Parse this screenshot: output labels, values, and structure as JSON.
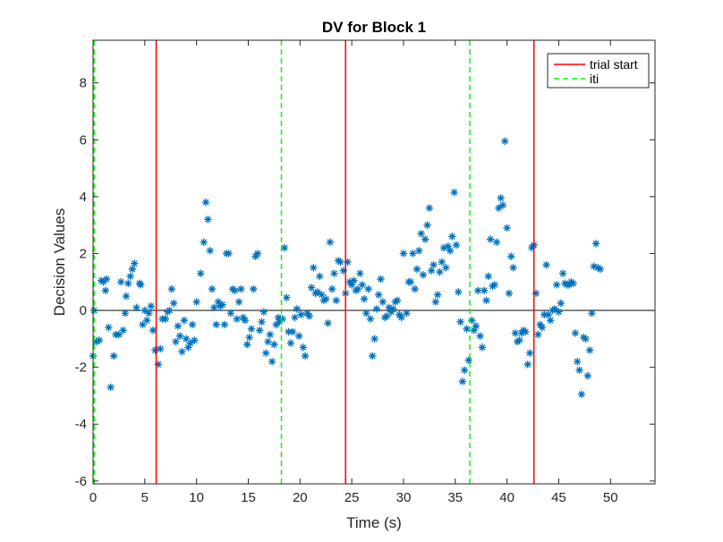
{
  "chart_data": {
    "type": "scatter",
    "title": "DV for Block 1",
    "xlabel": "Time (s)",
    "ylabel": "Decision Values",
    "xlim": [
      0,
      54.3
    ],
    "ylim": [
      -6.1,
      9.5
    ],
    "xticks": [
      0,
      5,
      10,
      15,
      20,
      25,
      30,
      35,
      40,
      45,
      50
    ],
    "yticks": [
      -6,
      -4,
      -2,
      0,
      2,
      4,
      6,
      8
    ],
    "grid": false,
    "legend_position": "top-right",
    "zero_line": 0,
    "colors": {
      "points": "#0072BD",
      "trial_start": "#FF0000",
      "iti": "#00FF00",
      "zero_line": "#262626"
    },
    "legend": [
      {
        "label": "trial start",
        "style": "solid",
        "color": "#FF0000"
      },
      {
        "label": "iti",
        "style": "dashed",
        "color": "#00FF00"
      }
    ],
    "trial_start_x": [
      6.1,
      24.4,
      42.6
    ],
    "iti_x": [
      0.1,
      18.2,
      36.4
    ],
    "series": [
      {
        "marker": "asterisk",
        "points": [
          [
            0.0,
            -1.6
          ],
          [
            0.1,
            0.0
          ],
          [
            0.3,
            -1.1
          ],
          [
            0.6,
            -1.05
          ],
          [
            0.8,
            1.05
          ],
          [
            1.0,
            1.0
          ],
          [
            1.2,
            0.7
          ],
          [
            1.3,
            1.1
          ],
          [
            1.5,
            -0.6
          ],
          [
            1.7,
            -2.7
          ],
          [
            2.0,
            -1.6
          ],
          [
            2.2,
            -0.85
          ],
          [
            2.5,
            -0.85
          ],
          [
            2.7,
            1.0
          ],
          [
            2.9,
            -0.7
          ],
          [
            3.1,
            -0.1
          ],
          [
            3.2,
            0.5
          ],
          [
            3.4,
            0.95
          ],
          [
            3.6,
            1.2
          ],
          [
            3.8,
            1.45
          ],
          [
            4.0,
            1.65
          ],
          [
            4.2,
            0.1
          ],
          [
            4.5,
            0.95
          ],
          [
            4.6,
            0.9
          ],
          [
            4.8,
            -0.5
          ],
          [
            5.0,
            0.0
          ],
          [
            5.2,
            -0.35
          ],
          [
            5.4,
            -0.1
          ],
          [
            5.6,
            0.15
          ],
          [
            5.8,
            -0.7
          ],
          [
            6.0,
            -1.4
          ],
          [
            6.3,
            -1.9
          ],
          [
            6.5,
            -1.35
          ],
          [
            6.7,
            -0.3
          ],
          [
            7.0,
            -0.3
          ],
          [
            7.2,
            -0.05
          ],
          [
            7.4,
            0.0
          ],
          [
            7.6,
            0.75
          ],
          [
            7.8,
            0.25
          ],
          [
            8.0,
            -1.1
          ],
          [
            8.2,
            -0.55
          ],
          [
            8.4,
            -0.9
          ],
          [
            8.6,
            -1.45
          ],
          [
            8.8,
            -0.35
          ],
          [
            9.0,
            -1.0
          ],
          [
            9.2,
            -1.3
          ],
          [
            9.4,
            -1.15
          ],
          [
            9.6,
            -0.5
          ],
          [
            9.8,
            -1.05
          ],
          [
            10.0,
            0.3
          ],
          [
            10.4,
            1.3
          ],
          [
            10.7,
            2.4
          ],
          [
            10.9,
            3.8
          ],
          [
            11.1,
            3.2
          ],
          [
            11.3,
            2.1
          ],
          [
            11.5,
            0.75
          ],
          [
            11.7,
            0.1
          ],
          [
            11.9,
            -0.5
          ],
          [
            12.1,
            0.3
          ],
          [
            12.3,
            0.15
          ],
          [
            12.5,
            0.2
          ],
          [
            12.7,
            -0.5
          ],
          [
            12.9,
            2.0
          ],
          [
            13.1,
            2.0
          ],
          [
            13.3,
            -0.1
          ],
          [
            13.5,
            0.75
          ],
          [
            13.7,
            0.7
          ],
          [
            13.9,
            -0.3
          ],
          [
            14.1,
            0.3
          ],
          [
            14.3,
            0.75
          ],
          [
            14.5,
            -0.25
          ],
          [
            14.7,
            -0.35
          ],
          [
            14.9,
            -1.2
          ],
          [
            15.1,
            -0.95
          ],
          [
            15.3,
            -0.65
          ],
          [
            15.5,
            0.75
          ],
          [
            15.7,
            1.9
          ],
          [
            15.9,
            2.0
          ],
          [
            16.1,
            -0.7
          ],
          [
            16.3,
            -0.4
          ],
          [
            16.5,
            -0.05
          ],
          [
            16.7,
            -1.5
          ],
          [
            16.9,
            -1.1
          ],
          [
            17.1,
            -0.85
          ],
          [
            17.3,
            -1.8
          ],
          [
            17.5,
            -1.2
          ],
          [
            17.7,
            -0.5
          ],
          [
            17.9,
            -0.25
          ],
          [
            18.0,
            -0.4
          ],
          [
            18.3,
            -0.3
          ],
          [
            18.5,
            2.2
          ],
          [
            18.7,
            0.45
          ],
          [
            18.9,
            -0.75
          ],
          [
            19.1,
            -1.15
          ],
          [
            19.3,
            -0.75
          ],
          [
            19.5,
            -0.25
          ],
          [
            19.7,
            0.05
          ],
          [
            19.9,
            -0.9
          ],
          [
            20.1,
            -0.15
          ],
          [
            20.3,
            -1.3
          ],
          [
            20.5,
            -1.6
          ],
          [
            20.7,
            -0.1
          ],
          [
            20.9,
            -0.2
          ],
          [
            21.1,
            0.8
          ],
          [
            21.3,
            1.5
          ],
          [
            21.5,
            0.6
          ],
          [
            21.7,
            0.65
          ],
          [
            21.9,
            1.2
          ],
          [
            22.1,
            0.55
          ],
          [
            22.3,
            0.35
          ],
          [
            22.5,
            0.4
          ],
          [
            22.7,
            -0.45
          ],
          [
            22.9,
            2.4
          ],
          [
            23.1,
            0.75
          ],
          [
            23.3,
            1.3
          ],
          [
            23.5,
            0.35
          ],
          [
            23.7,
            1.75
          ],
          [
            23.9,
            1.7
          ],
          [
            24.2,
            1.4
          ],
          [
            24.4,
            0.6
          ],
          [
            24.6,
            1.7
          ],
          [
            24.8,
            1.0
          ],
          [
            25.0,
            0.9
          ],
          [
            25.2,
            1.05
          ],
          [
            25.4,
            0.7
          ],
          [
            25.6,
            0.75
          ],
          [
            25.8,
            1.3
          ],
          [
            26.0,
            0.9
          ],
          [
            26.2,
            0.4
          ],
          [
            26.4,
            -0.1
          ],
          [
            26.6,
            0.75
          ],
          [
            26.8,
            -0.3
          ],
          [
            27.0,
            -1.6
          ],
          [
            27.2,
            -1.0
          ],
          [
            27.4,
            0.05
          ],
          [
            27.6,
            0.55
          ],
          [
            27.8,
            1.1
          ],
          [
            28.0,
            0.3
          ],
          [
            28.2,
            -0.25
          ],
          [
            28.4,
            -0.2
          ],
          [
            28.6,
            0.1
          ],
          [
            28.8,
            -0.05
          ],
          [
            29.0,
            0.05
          ],
          [
            29.2,
            0.3
          ],
          [
            29.4,
            0.35
          ],
          [
            29.6,
            -0.15
          ],
          [
            29.8,
            -0.25
          ],
          [
            30.0,
            2.0
          ],
          [
            30.3,
            -0.1
          ],
          [
            30.5,
            1.0
          ],
          [
            30.7,
            1.0
          ],
          [
            30.9,
            2.0
          ],
          [
            31.1,
            0.75
          ],
          [
            31.3,
            1.45
          ],
          [
            31.5,
            2.1
          ],
          [
            31.7,
            2.7
          ],
          [
            31.9,
            1.25
          ],
          [
            32.1,
            2.5
          ],
          [
            32.3,
            3.0
          ],
          [
            32.5,
            3.6
          ],
          [
            32.7,
            1.4
          ],
          [
            32.9,
            1.6
          ],
          [
            33.1,
            0.3
          ],
          [
            33.3,
            0.55
          ],
          [
            33.5,
            1.35
          ],
          [
            33.7,
            1.7
          ],
          [
            33.9,
            2.2
          ],
          [
            34.1,
            1.5
          ],
          [
            34.3,
            2.25
          ],
          [
            34.5,
            2.1
          ],
          [
            34.7,
            2.6
          ],
          [
            34.9,
            4.15
          ],
          [
            35.1,
            2.3
          ],
          [
            35.3,
            0.65
          ],
          [
            35.5,
            -0.4
          ],
          [
            35.7,
            -2.5
          ],
          [
            35.9,
            -2.1
          ],
          [
            36.1,
            -0.65
          ],
          [
            36.3,
            -1.75
          ],
          [
            36.6,
            -0.35
          ],
          [
            36.8,
            -0.7
          ],
          [
            37.0,
            -0.55
          ],
          [
            37.2,
            0.7
          ],
          [
            37.4,
            -0.9
          ],
          [
            37.6,
            -1.3
          ],
          [
            37.8,
            0.7
          ],
          [
            38.0,
            0.35
          ],
          [
            38.2,
            1.2
          ],
          [
            38.4,
            2.5
          ],
          [
            38.6,
            0.85
          ],
          [
            38.8,
            0.9
          ],
          [
            39.0,
            2.4
          ],
          [
            39.2,
            3.6
          ],
          [
            39.4,
            3.95
          ],
          [
            39.6,
            3.7
          ],
          [
            39.8,
            5.95
          ],
          [
            40.0,
            2.9
          ],
          [
            40.2,
            0.6
          ],
          [
            40.4,
            1.9
          ],
          [
            40.6,
            1.5
          ],
          [
            40.8,
            -0.8
          ],
          [
            41.0,
            -1.1
          ],
          [
            41.2,
            -1.05
          ],
          [
            41.4,
            -0.8
          ],
          [
            41.6,
            -0.7
          ],
          [
            41.8,
            -0.75
          ],
          [
            42.0,
            -1.9
          ],
          [
            42.2,
            -1.5
          ],
          [
            42.4,
            2.2
          ],
          [
            42.6,
            2.3
          ],
          [
            42.8,
            0.6
          ],
          [
            43.0,
            -0.85
          ],
          [
            43.2,
            -0.5
          ],
          [
            43.4,
            -0.6
          ],
          [
            43.6,
            -0.15
          ],
          [
            43.8,
            1.6
          ],
          [
            44.0,
            -0.15
          ],
          [
            44.2,
            -0.35
          ],
          [
            44.4,
            0.0
          ],
          [
            44.6,
            0.05
          ],
          [
            44.8,
            0.9
          ],
          [
            45.0,
            -0.05
          ],
          [
            45.2,
            0.25
          ],
          [
            45.4,
            1.3
          ],
          [
            45.6,
            0.95
          ],
          [
            45.8,
            0.9
          ],
          [
            46.0,
            0.9
          ],
          [
            46.2,
            1.0
          ],
          [
            46.4,
            0.95
          ],
          [
            46.6,
            -0.8
          ],
          [
            46.8,
            -1.8
          ],
          [
            47.0,
            -2.1
          ],
          [
            47.2,
            -2.95
          ],
          [
            47.4,
            -0.95
          ],
          [
            47.6,
            -1.0
          ],
          [
            47.8,
            -2.3
          ],
          [
            48.0,
            -1.4
          ],
          [
            48.2,
            -0.1
          ],
          [
            48.4,
            1.55
          ],
          [
            48.6,
            2.35
          ],
          [
            48.8,
            1.5
          ],
          [
            49.0,
            1.45
          ]
        ]
      }
    ]
  }
}
